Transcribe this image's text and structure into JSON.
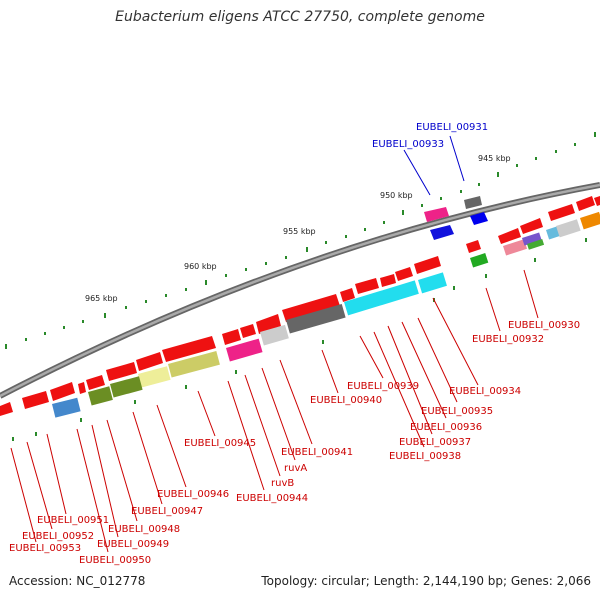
{
  "title": "Eubacterium eligens ATCC 27750, complete genome",
  "accession": "Accession: NC_012778",
  "summary": "Topology: circular; Length: 2,144,190 bp; Genes: 2,066",
  "tick_labels": [
    "945 kbp",
    "950 kbp",
    "955 kbp",
    "960 kbp",
    "965 kbp"
  ],
  "gene_labels": {
    "g00931": "EUBELI_00931",
    "g00933": "EUBELI_00933",
    "g00930": "EUBELI_00930",
    "g00932": "EUBELI_00932",
    "g00934": "EUBELI_00934",
    "g00935": "EUBELI_00935",
    "g00936": "EUBELI_00936",
    "g00937": "EUBELI_00937",
    "g00938": "EUBELI_00938",
    "g00939": "EUBELI_00939",
    "g00940": "EUBELI_00940",
    "g00941": "EUBELI_00941",
    "ruvA": "ruvA",
    "ruvB": "ruvB",
    "g00944": "EUBELI_00944",
    "g00945": "EUBELI_00945",
    "g00946": "EUBELI_00946",
    "g00947": "EUBELI_00947",
    "g00948": "EUBELI_00948",
    "g00949": "EUBELI_00949",
    "g00950": "EUBELI_00950",
    "g00951": "EUBELI_00951",
    "g00952": "EUBELI_00952",
    "g00953": "EUBELI_00953"
  },
  "colors": {
    "label_red": "#cc0000",
    "label_blue": "#0000cc",
    "gene_red": "#ee1111",
    "backbone": "#888888",
    "tick_green": "#228822"
  }
}
